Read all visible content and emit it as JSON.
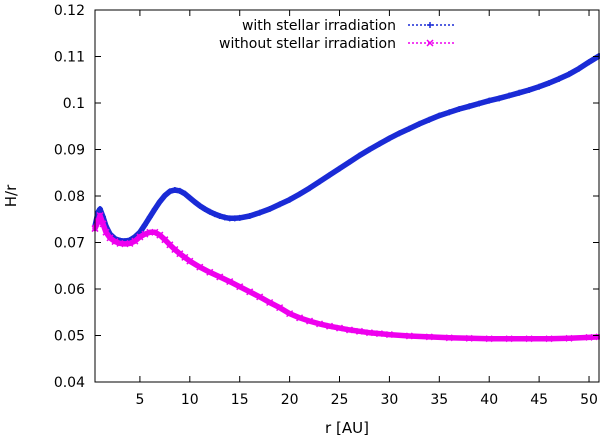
{
  "chart_data": {
    "type": "line",
    "title": "",
    "xlabel": "r [AU]",
    "ylabel": "H/r",
    "xlim": [
      0.5,
      51
    ],
    "ylim": [
      0.04,
      0.12
    ],
    "xticks": [
      5,
      10,
      15,
      20,
      25,
      30,
      35,
      40,
      45,
      50
    ],
    "xtick_labels": [
      "5",
      "10",
      "15",
      "20",
      "25",
      "30",
      "35",
      "40",
      "45",
      "50"
    ],
    "yticks": [
      0.04,
      0.05,
      0.06,
      0.07,
      0.08,
      0.09,
      0.1,
      0.11,
      0.12
    ],
    "ytick_labels": [
      "0.04",
      "0.05",
      "0.06",
      "0.07",
      "0.08",
      "0.09",
      "0.1",
      "0.11",
      "0.12"
    ],
    "legend_position": "top-right",
    "series": [
      {
        "name": "with stellar irradiation",
        "color": "#1a2bd6",
        "marker": "plus",
        "x": [
          0.5,
          0.8,
          1.0,
          1.3,
          1.6,
          2.0,
          2.5,
          3.0,
          3.5,
          4.0,
          4.5,
          5.0,
          5.5,
          6.0,
          6.5,
          7.0,
          7.5,
          8.0,
          8.5,
          9.0,
          9.5,
          10.0,
          10.5,
          11.0,
          11.5,
          12.0,
          12.5,
          13.0,
          13.5,
          14.0,
          14.5,
          15.0,
          16.0,
          17.0,
          18.0,
          19.0,
          20.0,
          21.0,
          22.0,
          23.0,
          24.0,
          25.0,
          26.0,
          27.0,
          28.0,
          29.0,
          30.0,
          31.0,
          32.0,
          33.0,
          34.0,
          35.0,
          36.0,
          37.0,
          38.0,
          39.0,
          40.0,
          41.0,
          42.0,
          43.0,
          44.0,
          45.0,
          46.0,
          47.0,
          48.0,
          49.0,
          50.0,
          51.0
        ],
        "y": [
          0.0735,
          0.0765,
          0.0772,
          0.0755,
          0.0735,
          0.0718,
          0.0708,
          0.0704,
          0.0703,
          0.0705,
          0.0712,
          0.0722,
          0.0738,
          0.0755,
          0.0772,
          0.0788,
          0.0801,
          0.081,
          0.0813,
          0.0811,
          0.0805,
          0.0796,
          0.0787,
          0.0779,
          0.0772,
          0.0766,
          0.0761,
          0.0757,
          0.0754,
          0.0752,
          0.0752,
          0.0753,
          0.0757,
          0.0764,
          0.0772,
          0.0782,
          0.0792,
          0.0804,
          0.0817,
          0.0831,
          0.0845,
          0.0859,
          0.0873,
          0.0887,
          0.09,
          0.0912,
          0.0924,
          0.0935,
          0.0945,
          0.0955,
          0.0964,
          0.0973,
          0.098,
          0.0987,
          0.0993,
          0.0999,
          0.1005,
          0.101,
          0.1016,
          0.1022,
          0.1028,
          0.1035,
          0.1043,
          0.1052,
          0.1062,
          0.1074,
          0.1088,
          0.1101
        ]
      },
      {
        "name": "without stellar irradiation",
        "color": "#ee00ee",
        "marker": "cross",
        "x": [
          0.5,
          0.8,
          1.0,
          1.3,
          1.6,
          2.0,
          2.5,
          3.0,
          3.5,
          4.0,
          4.5,
          5.0,
          5.5,
          6.0,
          6.5,
          7.0,
          7.5,
          8.0,
          8.5,
          9.0,
          9.5,
          10.0,
          11.0,
          12.0,
          13.0,
          14.0,
          15.0,
          16.0,
          17.0,
          18.0,
          19.0,
          20.0,
          21.0,
          22.0,
          23.0,
          24.0,
          25.0,
          26.0,
          27.0,
          28.0,
          29.0,
          30.0,
          32.0,
          34.0,
          36.0,
          38.0,
          40.0,
          42.0,
          44.0,
          46.0,
          48.0,
          50.0,
          51.0
        ],
        "y": [
          0.073,
          0.0745,
          0.0758,
          0.074,
          0.0722,
          0.071,
          0.0702,
          0.0698,
          0.0697,
          0.0698,
          0.0703,
          0.0712,
          0.0718,
          0.0722,
          0.0722,
          0.0716,
          0.0706,
          0.0695,
          0.0685,
          0.0676,
          0.0668,
          0.066,
          0.0647,
          0.0636,
          0.0626,
          0.0616,
          0.0605,
          0.0594,
          0.0583,
          0.0571,
          0.056,
          0.0547,
          0.0538,
          0.0531,
          0.0525,
          0.052,
          0.0516,
          0.0512,
          0.0509,
          0.0506,
          0.0504,
          0.0502,
          0.0499,
          0.0497,
          0.0495,
          0.0494,
          0.0493,
          0.0493,
          0.0493,
          0.0493,
          0.0494,
          0.0496,
          0.0497
        ]
      }
    ]
  }
}
